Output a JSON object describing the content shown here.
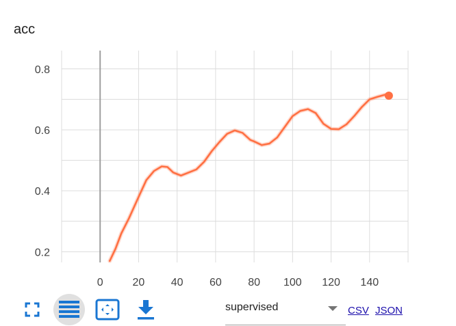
{
  "title": "acc",
  "chart_data": {
    "type": "line",
    "title": "acc",
    "xlim": [
      -20,
      160
    ],
    "ylim": [
      0.165,
      0.86
    ],
    "x_ticks": [
      0,
      20,
      40,
      60,
      80,
      100,
      120,
      140
    ],
    "x_tick_labels": [
      "0",
      "20",
      "40",
      "60",
      "80",
      "100",
      "120",
      "140"
    ],
    "y_ticks": [
      0.2,
      0.4,
      0.6,
      0.8
    ],
    "y_tick_labels": [
      "0.2",
      "0.4",
      "0.6",
      "0.8"
    ],
    "y_grid_extra": [
      0.3,
      0.5,
      0.7
    ],
    "grid": true,
    "series": [
      {
        "color": "#ff7043",
        "x": [
          5,
          8,
          11,
          15,
          20,
          24,
          28,
          32,
          35,
          38,
          42,
          46,
          50,
          54,
          58,
          62,
          66,
          70,
          74,
          78,
          80,
          84,
          88,
          92,
          96,
          100,
          104,
          108,
          112,
          116,
          120,
          124,
          128,
          132,
          136,
          140,
          144,
          148,
          150
        ],
        "y": [
          0.17,
          0.21,
          0.26,
          0.31,
          0.38,
          0.435,
          0.465,
          0.48,
          0.478,
          0.46,
          0.45,
          0.46,
          0.47,
          0.495,
          0.53,
          0.56,
          0.587,
          0.598,
          0.59,
          0.567,
          0.562,
          0.55,
          0.555,
          0.575,
          0.61,
          0.645,
          0.662,
          0.668,
          0.655,
          0.62,
          0.603,
          0.602,
          0.618,
          0.645,
          0.675,
          0.7,
          0.708,
          0.715,
          0.712
        ]
      }
    ]
  },
  "toolbar": {
    "expand_icon": "fullscreen-icon",
    "log_icon": "list-lines-icon",
    "fit_icon": "fit-to-data-icon",
    "download_icon": "download-icon",
    "run_value": "supervised",
    "csv_label": "CSV",
    "json_label": "JSON",
    "accent": "#1976d2"
  }
}
